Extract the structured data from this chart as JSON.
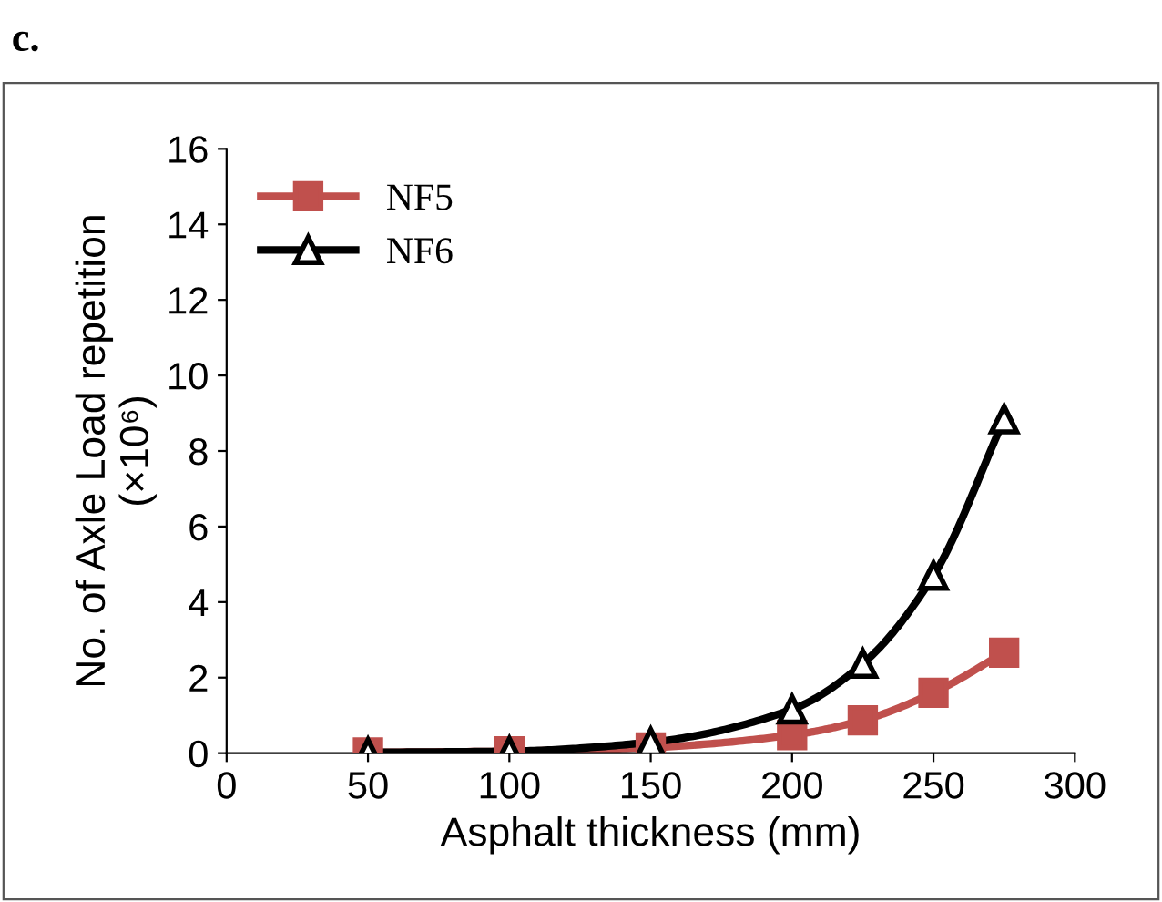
{
  "chart_data": {
    "type": "line",
    "xlabel": "Asphalt thickness (mm)",
    "ylabel": "No. of Axle Load repetition\n(×10⁶)",
    "annotations": [
      "c."
    ],
    "x": [
      50,
      100,
      150,
      200,
      225,
      250,
      275
    ],
    "series": [
      {
        "name": "NF5",
        "color": "#c0504d",
        "marker": "square",
        "values": [
          0.02,
          0.05,
          0.15,
          0.48,
          0.87,
          1.6,
          2.66
        ]
      },
      {
        "name": "NF6",
        "color": "#000000",
        "marker": "triangle",
        "values": [
          0.02,
          0.05,
          0.29,
          1.16,
          2.37,
          4.7,
          8.84
        ]
      }
    ],
    "xlim": [
      0,
      300
    ],
    "xticks": [
      0,
      50,
      100,
      150,
      200,
      250,
      300
    ],
    "ylim": [
      0,
      16
    ],
    "yticks": [
      0,
      2,
      4,
      6,
      8,
      10,
      12,
      14,
      16
    ],
    "grid": false,
    "legend": "top left"
  }
}
